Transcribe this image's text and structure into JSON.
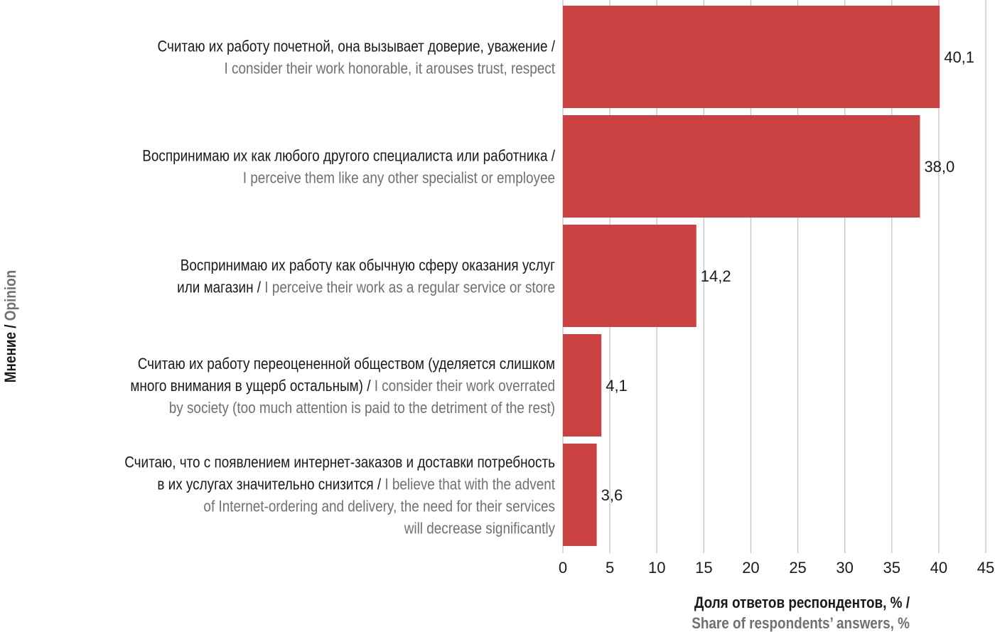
{
  "chart_data": {
    "type": "bar",
    "orientation": "horizontal",
    "categories": [
      {
        "lines": [
          [
            {
              "t": "Считаю их работу почетной, она вызывает доверие, уважение /",
              "c": "ru"
            }
          ],
          [
            {
              "t": "I consider their work honorable, it arouses trust, respect",
              "c": "en"
            }
          ]
        ]
      },
      {
        "lines": [
          [
            {
              "t": "Воспринимаю их как любого другого специалиста или работника /",
              "c": "ru"
            }
          ],
          [
            {
              "t": "I perceive them like any other specialist or employee",
              "c": "en"
            }
          ]
        ]
      },
      {
        "lines": [
          [
            {
              "t": "Воспринимаю их работу как обычную сферу оказания услуг",
              "c": "ru"
            }
          ],
          [
            {
              "t": "или магазин / ",
              "c": "ru"
            },
            {
              "t": "I perceive their work as a regular service or store",
              "c": "en"
            }
          ]
        ]
      },
      {
        "lines": [
          [
            {
              "t": "Считаю их работу переоцененной обществом (уделяется слишком",
              "c": "ru"
            }
          ],
          [
            {
              "t": "много внимания в ущерб остальным) / ",
              "c": "ru"
            },
            {
              "t": "I consider their work overrated",
              "c": "en"
            }
          ],
          [
            {
              "t": "by society (too much attention is paid to the detriment of the rest)",
              "c": "en"
            }
          ]
        ]
      },
      {
        "lines": [
          [
            {
              "t": "Считаю, что с появлением интернет-заказов и доставки потребность",
              "c": "ru"
            }
          ],
          [
            {
              "t": "в их услугах значительно снизится / ",
              "c": "ru"
            },
            {
              "t": "I believe that with the advent",
              "c": "en"
            }
          ],
          [
            {
              "t": "of Internet-ordering and delivery, the need for their services",
              "c": "en"
            }
          ],
          [
            {
              "t": "will decrease significantly",
              "c": "en"
            }
          ]
        ]
      }
    ],
    "values": [
      40.1,
      38.0,
      14.2,
      4.1,
      3.6
    ],
    "value_labels": [
      "40,1",
      "38,0",
      "14,2",
      "4,1",
      "3,6"
    ],
    "xlim": [
      0,
      45
    ],
    "xticks": [
      "0",
      "5",
      "10",
      "15",
      "20",
      "25",
      "30",
      "35",
      "40",
      "45"
    ],
    "xlabel": {
      "ru": "Доля ответов респондентов, % /",
      "en": "Share of respondents’ answers, %"
    },
    "ylabel": {
      "ru": "Мнение / ",
      "en": "Opinion"
    },
    "grid": "vertical",
    "bar_color": "#c94141"
  }
}
